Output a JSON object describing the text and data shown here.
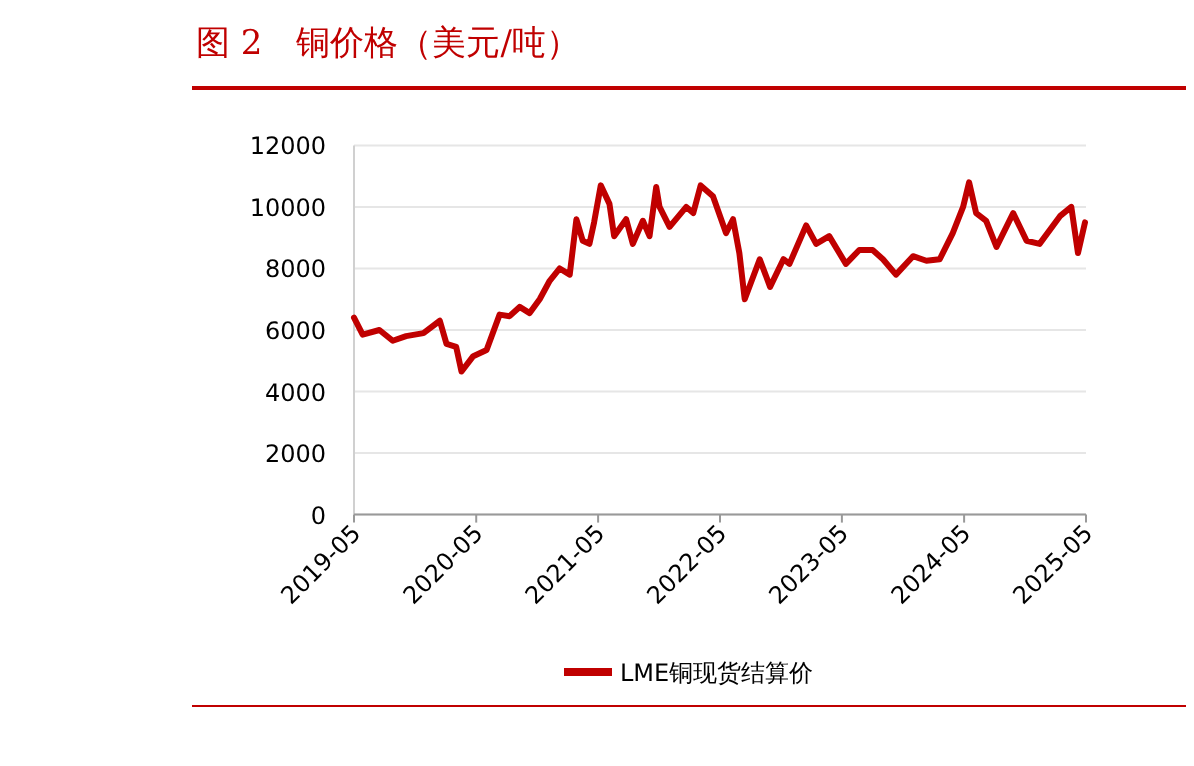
{
  "chart_data": {
    "type": "line",
    "title": "图 2　铜价格（美元/吨）",
    "x": [
      "2019-05-01",
      "2019-05-27",
      "2019-07-16",
      "2019-08-25",
      "2019-10-04",
      "2019-11-25",
      "2020-01-13",
      "2020-02-02",
      "2020-03-02",
      "2020-03-18",
      "2020-04-22",
      "2020-06-01",
      "2020-07-10",
      "2020-08-09",
      "2020-09-08",
      "2020-10-08",
      "2020-11-07",
      "2020-12-07",
      "2021-01-06",
      "2021-02-05",
      "2021-02-25",
      "2021-03-16",
      "2021-04-05",
      "2021-04-19",
      "2021-05-09",
      "2021-06-04",
      "2021-06-18",
      "2021-07-24",
      "2021-08-13",
      "2021-09-12",
      "2021-10-02",
      "2021-10-22",
      "2021-11-01",
      "2021-12-01",
      "2022-01-20",
      "2022-02-10",
      "2022-03-04",
      "2022-04-10",
      "2022-05-19",
      "2022-06-09",
      "2022-06-28",
      "2022-07-14",
      "2022-08-28",
      "2022-09-28",
      "2022-11-07",
      "2022-11-25",
      "2023-01-14",
      "2023-02-13",
      "2023-03-24",
      "2023-05-13",
      "2023-06-22",
      "2023-08-01",
      "2023-09-01",
      "2023-10-10",
      "2023-11-30",
      "2024-01-09",
      "2024-02-18",
      "2024-03-28",
      "2024-04-28",
      "2024-05-16",
      "2024-06-06",
      "2024-07-06",
      "2024-08-06",
      "2024-09-25",
      "2024-11-04",
      "2024-12-13",
      "2025-02-12",
      "2025-03-18",
      "2025-04-07",
      "2025-04-28"
    ],
    "series": [
      {
        "name": "LME铜现货结算价",
        "color": "#c00000",
        "values": [
          6400,
          5850,
          6000,
          5650,
          5800,
          5900,
          6300,
          5550,
          5450,
          4650,
          5150,
          5350,
          6500,
          6450,
          6750,
          6550,
          7000,
          7600,
          8000,
          7800,
          9600,
          8900,
          8800,
          9500,
          10700,
          10100,
          9050,
          9600,
          8800,
          9550,
          9050,
          10650,
          10000,
          9350,
          10000,
          9800,
          10700,
          10350,
          9150,
          9600,
          8500,
          7000,
          8300,
          7400,
          8300,
          8150,
          9400,
          8800,
          9050,
          8150,
          8600,
          8600,
          8300,
          7800,
          8400,
          8250,
          8300,
          9150,
          10000,
          10800,
          9800,
          9550,
          8700,
          9800,
          8900,
          8800,
          9700,
          10000,
          8500,
          9500
        ]
      }
    ],
    "xlim": [
      "2019-05",
      "2025-05"
    ],
    "xticks": [
      "2019-05",
      "2020-05",
      "2021-05",
      "2022-05",
      "2023-05",
      "2024-05",
      "2025-05"
    ],
    "ylim": [
      0,
      12000
    ],
    "yticks": [
      0,
      2000,
      4000,
      6000,
      8000,
      10000,
      12000
    ],
    "grid": "y",
    "legend": "bottom",
    "marker": "none",
    "line_style": "solid"
  }
}
